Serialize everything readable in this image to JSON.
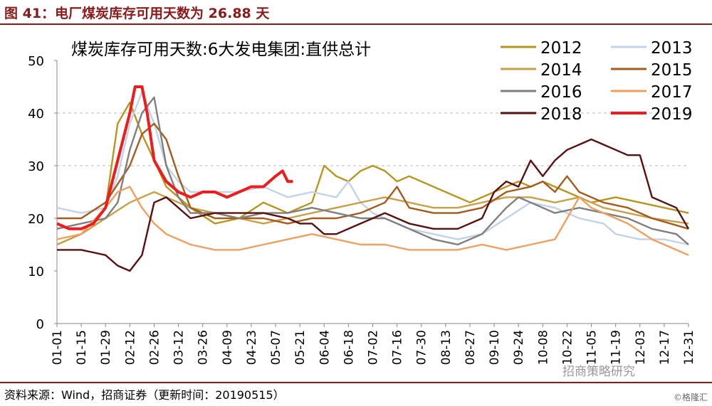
{
  "figure": {
    "title": "图 41：电厂煤炭库存可用天数为 26.88 天",
    "source": "资料来源：Wind，招商证券（更新时间：20190515）",
    "watermark": "招商策略研究",
    "corner": "©格隆汇"
  },
  "chart_data": {
    "type": "line",
    "title": "煤炭库存可用天数:6大发电集团:直供总计",
    "xlabel": "",
    "ylabel": "",
    "ylim": [
      0,
      50
    ],
    "yticks": [
      0,
      10,
      20,
      30,
      40,
      50
    ],
    "xlim": [
      "01-01",
      "12-31"
    ],
    "grid": "horizontal dashed at 30 and 40",
    "legend_position": "top-right",
    "x_ticks": [
      "01-01",
      "01-15",
      "01-29",
      "02-12",
      "02-26",
      "03-12",
      "03-26",
      "04-09",
      "04-23",
      "05-07",
      "05-21",
      "06-04",
      "06-18",
      "07-02",
      "07-16",
      "07-30",
      "08-13",
      "08-27",
      "09-10",
      "09-24",
      "10-08",
      "10-22",
      "11-05",
      "11-19",
      "12-03",
      "12-17",
      "12-31"
    ],
    "series": [
      {
        "name": "2012",
        "color": "#b8961e",
        "values": [
          [
            0,
            15
          ],
          [
            14,
            17
          ],
          [
            28,
            22
          ],
          [
            35,
            38
          ],
          [
            42,
            42
          ],
          [
            49,
            36
          ],
          [
            63,
            26
          ],
          [
            77,
            22
          ],
          [
            91,
            19
          ],
          [
            105,
            20
          ],
          [
            119,
            23
          ],
          [
            133,
            21
          ],
          [
            147,
            23
          ],
          [
            154,
            30
          ],
          [
            161,
            28
          ],
          [
            168,
            27
          ],
          [
            175,
            29
          ],
          [
            182,
            30
          ],
          [
            189,
            29
          ],
          [
            196,
            27
          ],
          [
            203,
            28
          ],
          [
            210,
            27
          ],
          [
            217,
            26
          ],
          [
            224,
            25
          ],
          [
            238,
            23
          ],
          [
            252,
            25
          ],
          [
            266,
            27
          ],
          [
            273,
            26
          ],
          [
            280,
            27
          ],
          [
            294,
            25
          ],
          [
            308,
            23
          ],
          [
            322,
            24
          ],
          [
            336,
            23
          ],
          [
            350,
            22
          ],
          [
            364,
            21
          ]
        ]
      },
      {
        "name": "2013",
        "color": "#c3d3e6",
        "values": [
          [
            0,
            22
          ],
          [
            14,
            21
          ],
          [
            28,
            22
          ],
          [
            35,
            28
          ],
          [
            42,
            38
          ],
          [
            49,
            44
          ],
          [
            56,
            38
          ],
          [
            63,
            30
          ],
          [
            70,
            27
          ],
          [
            77,
            25
          ],
          [
            91,
            25
          ],
          [
            105,
            25
          ],
          [
            119,
            26
          ],
          [
            133,
            24
          ],
          [
            147,
            25
          ],
          [
            161,
            24
          ],
          [
            168,
            27
          ],
          [
            175,
            23
          ],
          [
            182,
            21
          ],
          [
            189,
            20
          ],
          [
            203,
            18
          ],
          [
            217,
            17
          ],
          [
            231,
            16
          ],
          [
            245,
            17
          ],
          [
            259,
            20
          ],
          [
            273,
            23
          ],
          [
            287,
            22
          ],
          [
            294,
            21
          ],
          [
            301,
            20
          ],
          [
            315,
            19
          ],
          [
            322,
            17
          ],
          [
            336,
            16
          ],
          [
            350,
            16
          ],
          [
            364,
            15
          ]
        ]
      },
      {
        "name": "2014",
        "color": "#c8a04a",
        "values": [
          [
            0,
            15
          ],
          [
            14,
            17
          ],
          [
            28,
            20
          ],
          [
            42,
            23
          ],
          [
            56,
            25
          ],
          [
            63,
            24
          ],
          [
            77,
            22
          ],
          [
            91,
            21
          ],
          [
            105,
            20
          ],
          [
            119,
            19
          ],
          [
            133,
            20
          ],
          [
            147,
            21
          ],
          [
            161,
            22
          ],
          [
            175,
            23
          ],
          [
            189,
            24
          ],
          [
            203,
            23
          ],
          [
            217,
            22
          ],
          [
            231,
            22
          ],
          [
            245,
            23
          ],
          [
            259,
            24
          ],
          [
            273,
            24
          ],
          [
            287,
            23
          ],
          [
            301,
            24
          ],
          [
            315,
            22
          ],
          [
            329,
            21
          ],
          [
            343,
            20
          ],
          [
            364,
            19
          ]
        ]
      },
      {
        "name": "2015",
        "color": "#a8591c",
        "values": [
          [
            0,
            20
          ],
          [
            14,
            20
          ],
          [
            28,
            23
          ],
          [
            42,
            30
          ],
          [
            49,
            36
          ],
          [
            56,
            38
          ],
          [
            63,
            35
          ],
          [
            70,
            28
          ],
          [
            77,
            22
          ],
          [
            91,
            20
          ],
          [
            105,
            20
          ],
          [
            119,
            20
          ],
          [
            133,
            19
          ],
          [
            147,
            20
          ],
          [
            161,
            20
          ],
          [
            175,
            21
          ],
          [
            189,
            23
          ],
          [
            196,
            26
          ],
          [
            203,
            22
          ],
          [
            217,
            21
          ],
          [
            231,
            21
          ],
          [
            245,
            22
          ],
          [
            259,
            25
          ],
          [
            273,
            26
          ],
          [
            280,
            27
          ],
          [
            287,
            25
          ],
          [
            294,
            28
          ],
          [
            301,
            25
          ],
          [
            315,
            23
          ],
          [
            329,
            22
          ],
          [
            343,
            20
          ],
          [
            364,
            18
          ]
        ]
      },
      {
        "name": "2016",
        "color": "#7f7f7f",
        "values": [
          [
            0,
            18
          ],
          [
            14,
            19
          ],
          [
            28,
            20
          ],
          [
            35,
            23
          ],
          [
            42,
            33
          ],
          [
            49,
            40
          ],
          [
            56,
            43
          ],
          [
            63,
            30
          ],
          [
            70,
            24
          ],
          [
            77,
            21
          ],
          [
            91,
            21
          ],
          [
            105,
            20
          ],
          [
            119,
            21
          ],
          [
            133,
            21
          ],
          [
            147,
            22
          ],
          [
            161,
            21
          ],
          [
            175,
            20
          ],
          [
            189,
            20
          ],
          [
            203,
            18
          ],
          [
            217,
            16
          ],
          [
            231,
            15
          ],
          [
            245,
            17
          ],
          [
            259,
            22
          ],
          [
            266,
            24
          ],
          [
            273,
            23
          ],
          [
            287,
            21
          ],
          [
            301,
            22
          ],
          [
            315,
            21
          ],
          [
            329,
            20
          ],
          [
            343,
            18
          ],
          [
            357,
            17
          ],
          [
            364,
            15
          ]
        ]
      },
      {
        "name": "2017",
        "color": "#f0a060",
        "values": [
          [
            0,
            16
          ],
          [
            14,
            17
          ],
          [
            28,
            22
          ],
          [
            35,
            25
          ],
          [
            42,
            26
          ],
          [
            49,
            22
          ],
          [
            56,
            19
          ],
          [
            63,
            17
          ],
          [
            70,
            16
          ],
          [
            77,
            15
          ],
          [
            91,
            14
          ],
          [
            105,
            14
          ],
          [
            119,
            15
          ],
          [
            133,
            16
          ],
          [
            147,
            17
          ],
          [
            161,
            16
          ],
          [
            175,
            15
          ],
          [
            189,
            15
          ],
          [
            203,
            14
          ],
          [
            217,
            14
          ],
          [
            231,
            14
          ],
          [
            245,
            15
          ],
          [
            259,
            14
          ],
          [
            273,
            15
          ],
          [
            287,
            16
          ],
          [
            294,
            20
          ],
          [
            301,
            24
          ],
          [
            308,
            22
          ],
          [
            315,
            21
          ],
          [
            329,
            19
          ],
          [
            343,
            16
          ],
          [
            357,
            14
          ],
          [
            364,
            13
          ]
        ]
      },
      {
        "name": "2018",
        "color": "#5a1010",
        "values": [
          [
            0,
            14
          ],
          [
            14,
            14
          ],
          [
            28,
            13
          ],
          [
            35,
            11
          ],
          [
            42,
            10
          ],
          [
            49,
            13
          ],
          [
            56,
            23
          ],
          [
            63,
            24
          ],
          [
            70,
            22
          ],
          [
            77,
            20
          ],
          [
            91,
            21
          ],
          [
            105,
            21
          ],
          [
            119,
            21
          ],
          [
            133,
            20
          ],
          [
            140,
            19
          ],
          [
            147,
            19
          ],
          [
            154,
            17
          ],
          [
            161,
            17
          ],
          [
            175,
            19
          ],
          [
            189,
            21
          ],
          [
            203,
            19
          ],
          [
            217,
            18
          ],
          [
            231,
            18
          ],
          [
            245,
            20
          ],
          [
            252,
            25
          ],
          [
            259,
            27
          ],
          [
            266,
            26
          ],
          [
            273,
            31
          ],
          [
            280,
            28
          ],
          [
            287,
            31
          ],
          [
            294,
            33
          ],
          [
            301,
            34
          ],
          [
            308,
            35
          ],
          [
            315,
            34
          ],
          [
            322,
            33
          ],
          [
            329,
            32
          ],
          [
            336,
            32
          ],
          [
            343,
            24
          ],
          [
            350,
            23
          ],
          [
            357,
            22
          ],
          [
            364,
            18
          ]
        ]
      },
      {
        "name": "2019",
        "color": "#ee1c1c",
        "values": [
          [
            0,
            19
          ],
          [
            7,
            18
          ],
          [
            14,
            18
          ],
          [
            21,
            19
          ],
          [
            28,
            22
          ],
          [
            35,
            31
          ],
          [
            42,
            40
          ],
          [
            45,
            45
          ],
          [
            49,
            45
          ],
          [
            52,
            40
          ],
          [
            56,
            31
          ],
          [
            63,
            27
          ],
          [
            70,
            25
          ],
          [
            77,
            24
          ],
          [
            84,
            25
          ],
          [
            91,
            25
          ],
          [
            98,
            24
          ],
          [
            105,
            25
          ],
          [
            112,
            26
          ],
          [
            119,
            26
          ],
          [
            126,
            28
          ],
          [
            130,
            29
          ],
          [
            133,
            27
          ],
          [
            136,
            27
          ]
        ]
      }
    ]
  }
}
